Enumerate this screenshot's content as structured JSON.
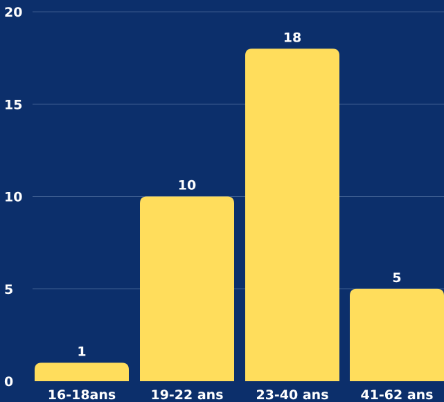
{
  "chart_data": {
    "type": "bar",
    "categories": [
      "16-18ans",
      "19-22 ans",
      "23-40 ans",
      "41-62 ans"
    ],
    "values": [
      1,
      10,
      18,
      5
    ],
    "title": "",
    "xlabel": "",
    "ylabel": "",
    "ylim": [
      0,
      20
    ],
    "yticks": [
      0,
      5,
      10,
      15,
      20
    ],
    "grid": true,
    "data_labels": true
  },
  "colors": {
    "background": "#0c2f6b",
    "bar": "#ffdd5c",
    "text": "#ffffff",
    "grid": "#3a5a8e"
  }
}
